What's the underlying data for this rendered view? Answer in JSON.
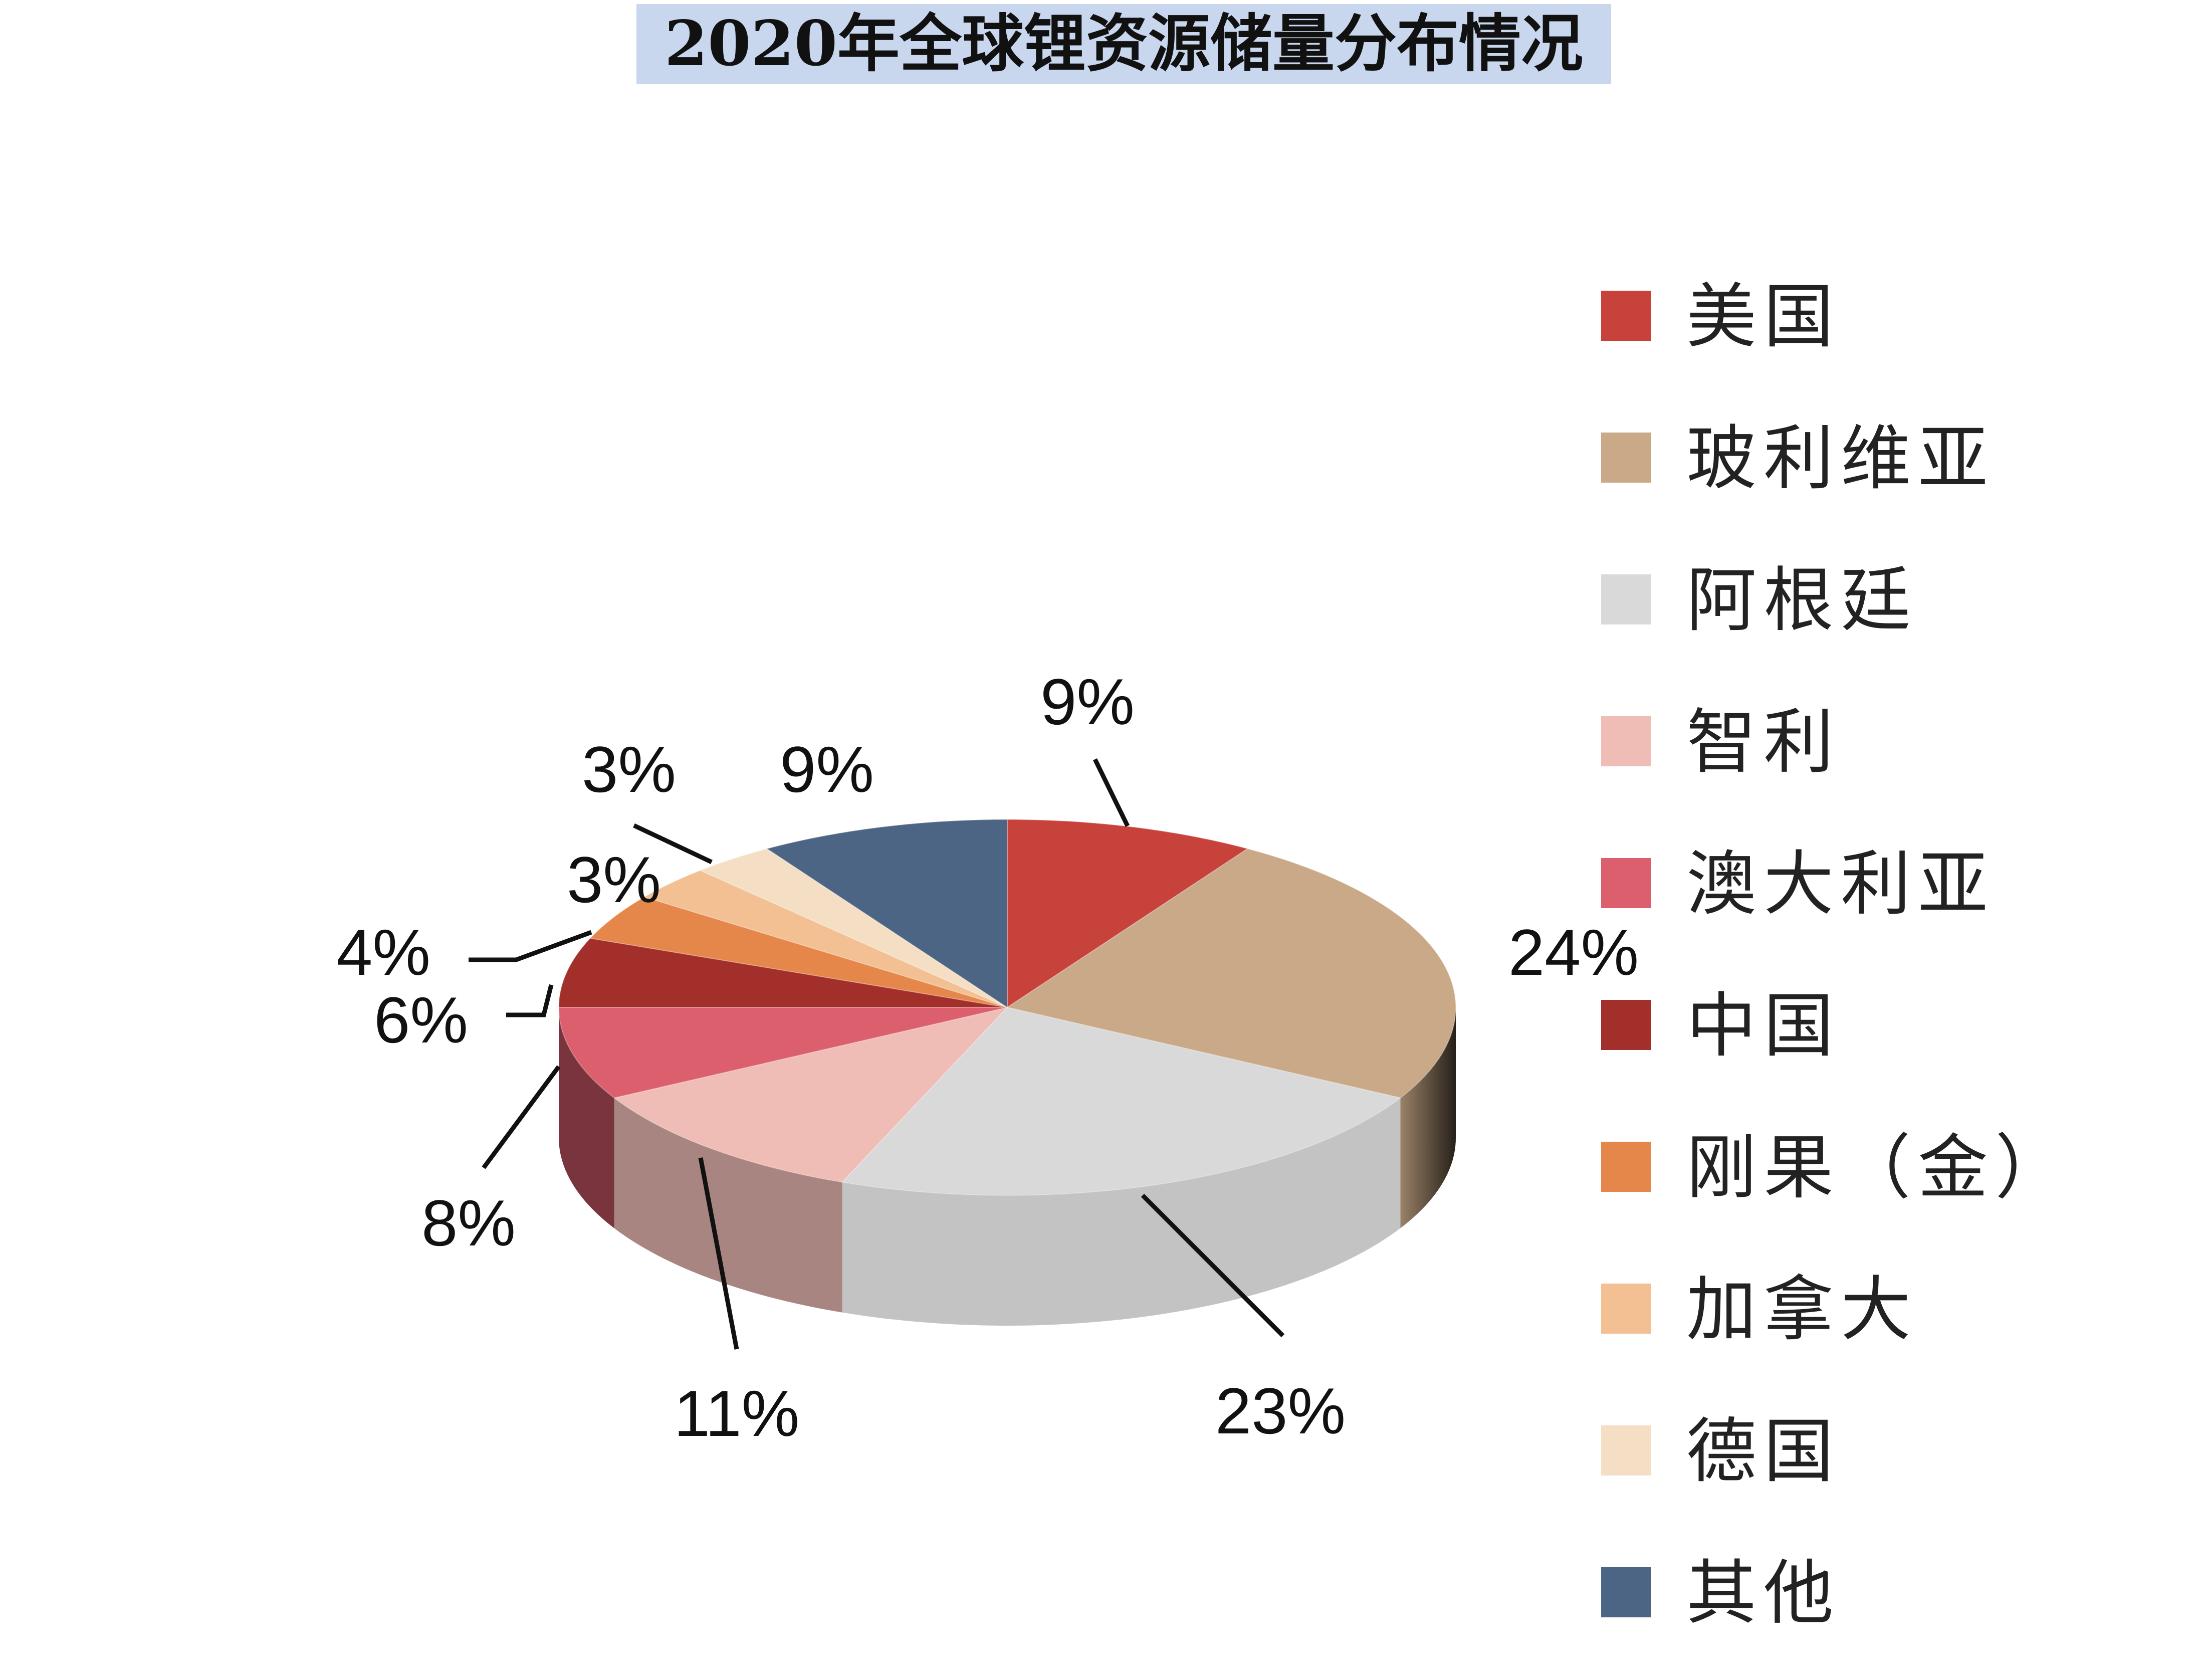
{
  "chart_data": {
    "type": "pie",
    "title": "2020年全球锂资源储量分布情况",
    "style": "3d-pie",
    "legend_position": "right",
    "slices": [
      {
        "label": "美国",
        "value": 9,
        "display": "9%",
        "color": "#c8423c"
      },
      {
        "label": "玻利维亚",
        "value": 24,
        "display": "24%",
        "color": "#c9a987"
      },
      {
        "label": "阿根廷",
        "value": 23,
        "display": "23%",
        "color": "#d9d9d9"
      },
      {
        "label": "智利",
        "value": 11,
        "display": "11%",
        "color": "#efbdb6"
      },
      {
        "label": "澳大利亚",
        "value": 8,
        "display": "8%",
        "color": "#dc5f6e"
      },
      {
        "label": "中国",
        "value": 6,
        "display": "6%",
        "color": "#a32f2a"
      },
      {
        "label": "刚果（金）",
        "value": 4,
        "display": "4%",
        "color": "#e5874a"
      },
      {
        "label": "加拿大",
        "value": 3,
        "display": "3%",
        "color": "#f2c093"
      },
      {
        "label": "德国",
        "value": 3,
        "display": "3%",
        "color": "#f5dfc4"
      },
      {
        "label": "其他",
        "value": 9,
        "display": "9%",
        "color": "#4d6584"
      }
    ]
  }
}
